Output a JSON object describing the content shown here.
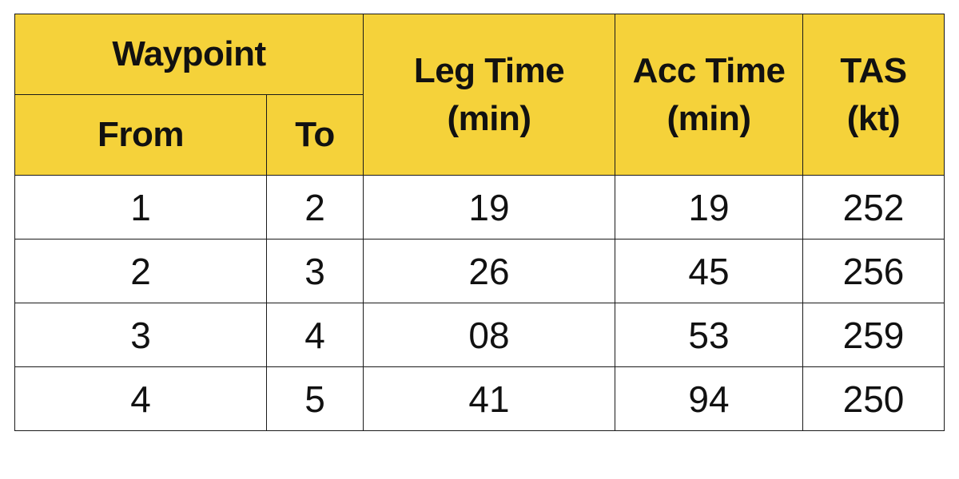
{
  "table": {
    "header": {
      "waypoint": "Waypoint",
      "from": "From",
      "to": "To",
      "leg_time": [
        "Leg Time",
        "(min)"
      ],
      "acc_time": [
        "Acc Time",
        "(min)"
      ],
      "tas": [
        "TAS",
        "(kt)"
      ]
    },
    "rows": [
      {
        "from": "1",
        "to": "2",
        "leg": "19",
        "acc": "19",
        "tas": "252"
      },
      {
        "from": "2",
        "to": "3",
        "leg": "26",
        "acc": "45",
        "tas": "256"
      },
      {
        "from": "3",
        "to": "4",
        "leg": "08",
        "acc": "53",
        "tas": "259"
      },
      {
        "from": "4",
        "to": "5",
        "leg": "41",
        "acc": "94",
        "tas": "250"
      }
    ]
  },
  "colors": {
    "header_bg": "#f5d23a",
    "border": "#1a1a1a",
    "text": "#111111"
  }
}
